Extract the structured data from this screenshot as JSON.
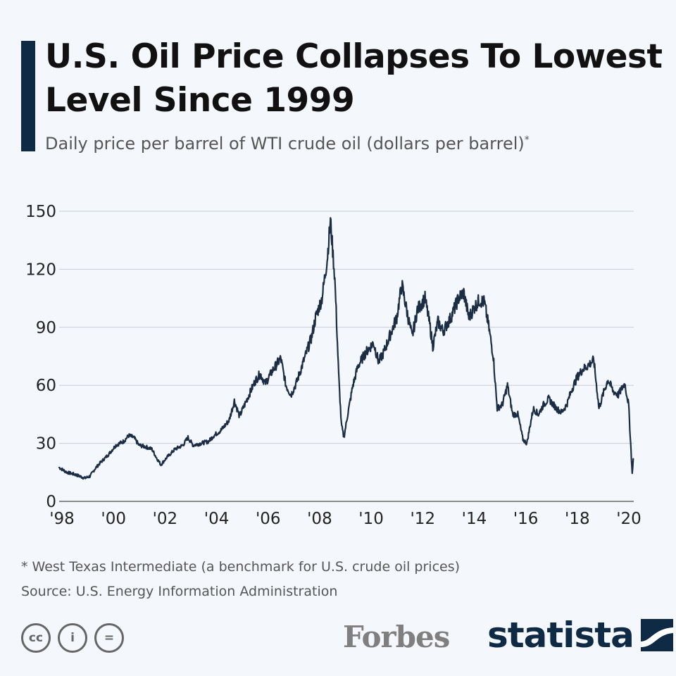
{
  "header": {
    "title": "U.S. Oil Price Collapses To Lowest Level Since 1999",
    "subtitle": "Daily price per barrel of WTI crude oil (dollars per barrel)",
    "subtitle_mark": "*"
  },
  "footer": {
    "footnote": "* West Texas Intermediate (a benchmark for U.S. crude oil prices)",
    "source": "Source: U.S. Energy Information Administration",
    "license_icons": [
      "cc",
      "i",
      "="
    ],
    "forbes_logo": "Forbes",
    "statista_logo": "statista"
  },
  "colors": {
    "accent": "#0f2a44",
    "line": "#1b2d44",
    "grid": "#c6ccd3",
    "axis_text": "#222222"
  },
  "chart_data": {
    "type": "line",
    "title": "U.S. Oil Price Collapses To Lowest Level Since 1999",
    "subtitle": "Daily price per barrel of WTI crude oil (dollars per barrel)*",
    "xlabel": "",
    "ylabel": "",
    "ylim": [
      0,
      150
    ],
    "xlim": [
      1998.0,
      2020.3
    ],
    "grid": true,
    "yticks": [
      0,
      30,
      60,
      90,
      120,
      150
    ],
    "xticks": [
      {
        "value": 1998,
        "label": "'98"
      },
      {
        "value": 2000,
        "label": "'00"
      },
      {
        "value": 2002,
        "label": "'02"
      },
      {
        "value": 2004,
        "label": "'04"
      },
      {
        "value": 2006,
        "label": "'06"
      },
      {
        "value": 2008,
        "label": "'08"
      },
      {
        "value": 2010,
        "label": "'10"
      },
      {
        "value": 2012,
        "label": "'12"
      },
      {
        "value": 2014,
        "label": "'14"
      },
      {
        "value": 2016,
        "label": "'16"
      },
      {
        "value": 2018,
        "label": "'18"
      },
      {
        "value": 2020,
        "label": "'20"
      }
    ],
    "series": [
      {
        "name": "WTI crude oil",
        "points": [
          [
            1998.0,
            17.5
          ],
          [
            1998.3,
            15
          ],
          [
            1998.6,
            14
          ],
          [
            1998.9,
            12.5
          ],
          [
            1999.0,
            12
          ],
          [
            1999.2,
            13
          ],
          [
            1999.4,
            17
          ],
          [
            1999.6,
            20
          ],
          [
            1999.9,
            24
          ],
          [
            2000.2,
            29
          ],
          [
            2000.5,
            31
          ],
          [
            2000.7,
            34
          ],
          [
            2000.9,
            33
          ],
          [
            2001.1,
            29
          ],
          [
            2001.4,
            28
          ],
          [
            2001.6,
            27
          ],
          [
            2001.8,
            22
          ],
          [
            2001.95,
            19
          ],
          [
            2002.2,
            23
          ],
          [
            2002.5,
            27
          ],
          [
            2002.8,
            29
          ],
          [
            2003.0,
            33
          ],
          [
            2003.2,
            29
          ],
          [
            2003.5,
            30
          ],
          [
            2003.8,
            31
          ],
          [
            2004.0,
            34
          ],
          [
            2004.3,
            37
          ],
          [
            2004.6,
            42
          ],
          [
            2004.8,
            52
          ],
          [
            2005.0,
            44
          ],
          [
            2005.3,
            53
          ],
          [
            2005.6,
            62
          ],
          [
            2005.8,
            66
          ],
          [
            2006.0,
            61
          ],
          [
            2006.3,
            68
          ],
          [
            2006.6,
            74
          ],
          [
            2006.8,
            60
          ],
          [
            2007.0,
            55
          ],
          [
            2007.2,
            61
          ],
          [
            2007.5,
            73
          ],
          [
            2007.8,
            85
          ],
          [
            2007.95,
            95
          ],
          [
            2008.2,
            105
          ],
          [
            2008.4,
            125
          ],
          [
            2008.53,
            145
          ],
          [
            2008.7,
            115
          ],
          [
            2008.85,
            65
          ],
          [
            2008.95,
            40
          ],
          [
            2009.05,
            33
          ],
          [
            2009.2,
            45
          ],
          [
            2009.4,
            60
          ],
          [
            2009.6,
            70
          ],
          [
            2009.9,
            77
          ],
          [
            2010.2,
            82
          ],
          [
            2010.4,
            72
          ],
          [
            2010.6,
            77
          ],
          [
            2010.9,
            88
          ],
          [
            2011.1,
            95
          ],
          [
            2011.3,
            112
          ],
          [
            2011.5,
            98
          ],
          [
            2011.7,
            85
          ],
          [
            2011.9,
            99
          ],
          [
            2012.2,
            105
          ],
          [
            2012.4,
            90
          ],
          [
            2012.5,
            80
          ],
          [
            2012.7,
            93
          ],
          [
            2012.9,
            88
          ],
          [
            2013.2,
            95
          ],
          [
            2013.5,
            105
          ],
          [
            2013.7,
            108
          ],
          [
            2013.9,
            95
          ],
          [
            2014.1,
            100
          ],
          [
            2014.3,
            104
          ],
          [
            2014.5,
            103
          ],
          [
            2014.65,
            92
          ],
          [
            2014.85,
            75
          ],
          [
            2015.0,
            48
          ],
          [
            2015.2,
            50
          ],
          [
            2015.4,
            60
          ],
          [
            2015.6,
            45
          ],
          [
            2015.8,
            45
          ],
          [
            2016.0,
            32
          ],
          [
            2016.15,
            30
          ],
          [
            2016.4,
            48
          ],
          [
            2016.6,
            45
          ],
          [
            2016.8,
            50
          ],
          [
            2017.0,
            53
          ],
          [
            2017.3,
            48
          ],
          [
            2017.5,
            46
          ],
          [
            2017.7,
            50
          ],
          [
            2017.9,
            58
          ],
          [
            2018.1,
            64
          ],
          [
            2018.3,
            68
          ],
          [
            2018.5,
            70
          ],
          [
            2018.75,
            73
          ],
          [
            2018.95,
            48
          ],
          [
            2019.1,
            55
          ],
          [
            2019.3,
            63
          ],
          [
            2019.5,
            57
          ],
          [
            2019.7,
            55
          ],
          [
            2019.95,
            61
          ],
          [
            2020.1,
            50
          ],
          [
            2020.18,
            30
          ],
          [
            2020.24,
            14
          ],
          [
            2020.28,
            22
          ]
        ]
      }
    ]
  }
}
